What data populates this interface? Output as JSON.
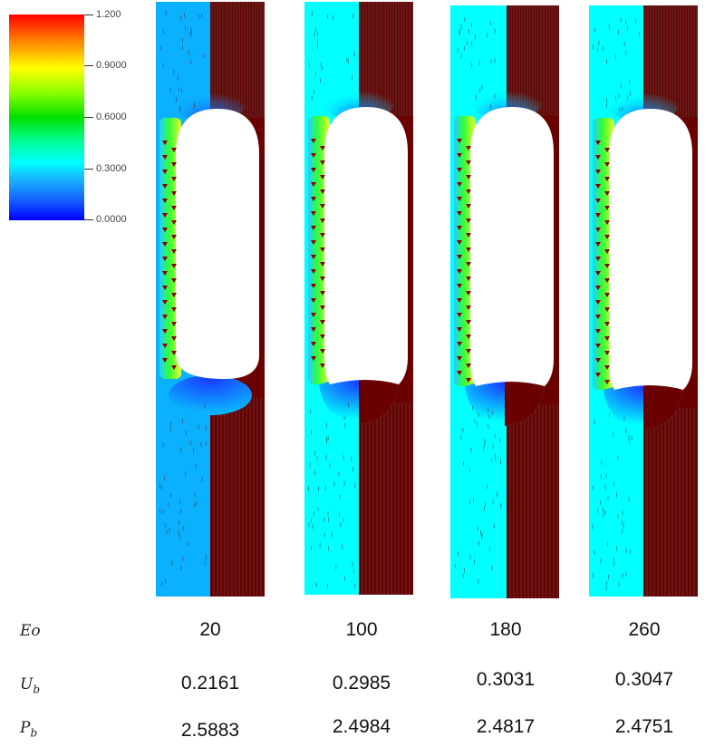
{
  "colorbar": {
    "ticks": [
      "1.200",
      "0.9000",
      "0.6000",
      "0.3000",
      "0.0000"
    ]
  },
  "row_labels": {
    "eo": "Eo",
    "ub_base": "U",
    "ub_sub": "b",
    "pb_base": "P",
    "pb_sub": "b"
  },
  "cases": [
    {
      "eo": "20",
      "ub": "0.2161",
      "pb": "2.5883"
    },
    {
      "eo": "100",
      "ub": "0.2985",
      "pb": "2.4984"
    },
    {
      "eo": "180",
      "ub": "0.3031",
      "pb": "2.4817"
    },
    {
      "eo": "260",
      "ub": "0.3047",
      "pb": "2.4751"
    }
  ],
  "colors": {
    "background_case1": "#0bb0ff",
    "background_other": "#00ffff",
    "right_half": "#6b0000",
    "bubble": "#ffffff",
    "film": "#e8ff30",
    "wake": "#1a3cff"
  }
}
